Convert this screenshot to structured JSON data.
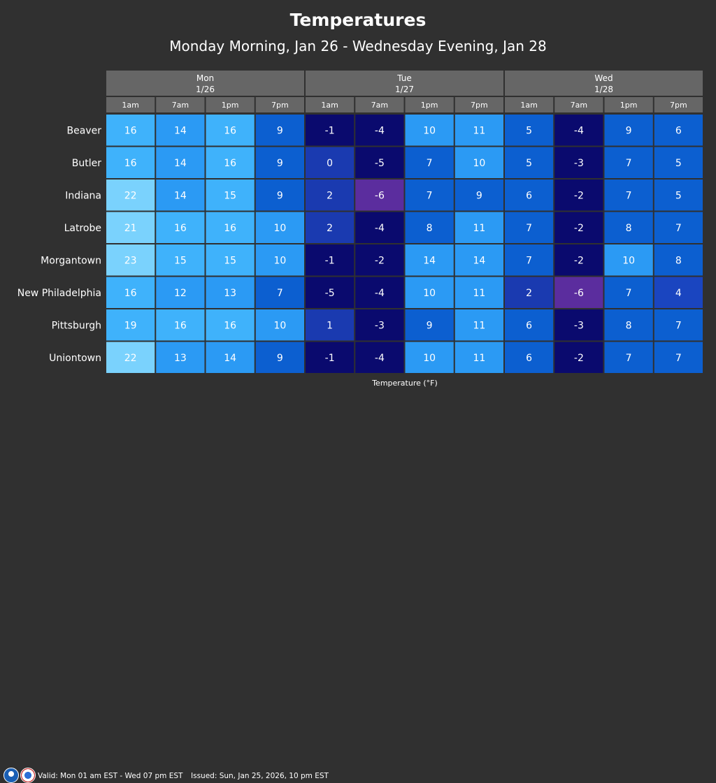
{
  "title": "Temperatures",
  "subtitle": "Monday Morning, Jan 26 - Wednesday Evening, Jan 28",
  "footer": {
    "unit_label": "Temperature (°F)",
    "valid": "Valid: Mon 01 am EST - Wed 07 pm EST",
    "issued": "Issued: Sun, Jan 25, 2026, 10 pm EST"
  },
  "colors": {
    "background": "#303030",
    "header_bg": "#666666",
    "cell_border": "#3a3a3a",
    "scale": {
      "-6": "#5b2d9e",
      "-5": "#0a0a6e",
      "-4": "#0a0a6e",
      "-3": "#0a0a6e",
      "-2": "#0a0a6e",
      "-1": "#0a0a6e",
      "0": "#1a3ab0",
      "1": "#1a3ab0",
      "2": "#1a3ab0",
      "3": "#1a45c0",
      "4": "#1a45c0",
      "5": "#0c5fd0",
      "6": "#0c5fd0",
      "7": "#0c5fd0",
      "8": "#0c5fd0",
      "9": "#0c5fd0",
      "10": "#2b9af4",
      "11": "#2b9af4",
      "12": "#2b9af4",
      "13": "#2b9af4",
      "14": "#2b9af4",
      "15": "#3fb2fb",
      "16": "#3fb2fb",
      "17": "#3fb2fb",
      "18": "#3fb2fb",
      "19": "#3fb2fb",
      "20": "#7ad2fd",
      "21": "#7ad2fd",
      "22": "#7ad2fd",
      "23": "#7ad2fd"
    }
  },
  "chart_data": {
    "type": "heatmap",
    "days": [
      {
        "name": "Mon",
        "date": "1/26"
      },
      {
        "name": "Tue",
        "date": "1/27"
      },
      {
        "name": "Wed",
        "date": "1/28"
      }
    ],
    "times": [
      "1am",
      "7am",
      "1pm",
      "7pm",
      "1am",
      "7am",
      "1pm",
      "7pm",
      "1am",
      "7am",
      "1pm",
      "7pm"
    ],
    "rows": [
      {
        "name": "Beaver",
        "values": [
          16,
          14,
          16,
          9,
          -1,
          -4,
          10,
          11,
          5,
          -4,
          9,
          6
        ]
      },
      {
        "name": "Butler",
        "values": [
          16,
          14,
          16,
          9,
          0,
          -5,
          7,
          10,
          5,
          -3,
          7,
          5
        ]
      },
      {
        "name": "Indiana",
        "values": [
          22,
          14,
          15,
          9,
          2,
          -6,
          7,
          9,
          6,
          -2,
          7,
          5
        ]
      },
      {
        "name": "Latrobe",
        "values": [
          21,
          16,
          16,
          10,
          2,
          -4,
          8,
          11,
          7,
          -2,
          8,
          7
        ]
      },
      {
        "name": "Morgantown",
        "values": [
          23,
          15,
          15,
          10,
          -1,
          -2,
          14,
          14,
          7,
          -2,
          10,
          8
        ]
      },
      {
        "name": "New Philadelphia",
        "values": [
          16,
          12,
          13,
          7,
          -5,
          -4,
          10,
          11,
          2,
          -6,
          7,
          4
        ]
      },
      {
        "name": "Pittsburgh",
        "values": [
          19,
          16,
          16,
          10,
          1,
          -3,
          9,
          11,
          6,
          -3,
          8,
          7
        ]
      },
      {
        "name": "Uniontown",
        "values": [
          22,
          13,
          14,
          9,
          -1,
          -4,
          10,
          11,
          6,
          -2,
          7,
          7
        ]
      }
    ]
  }
}
